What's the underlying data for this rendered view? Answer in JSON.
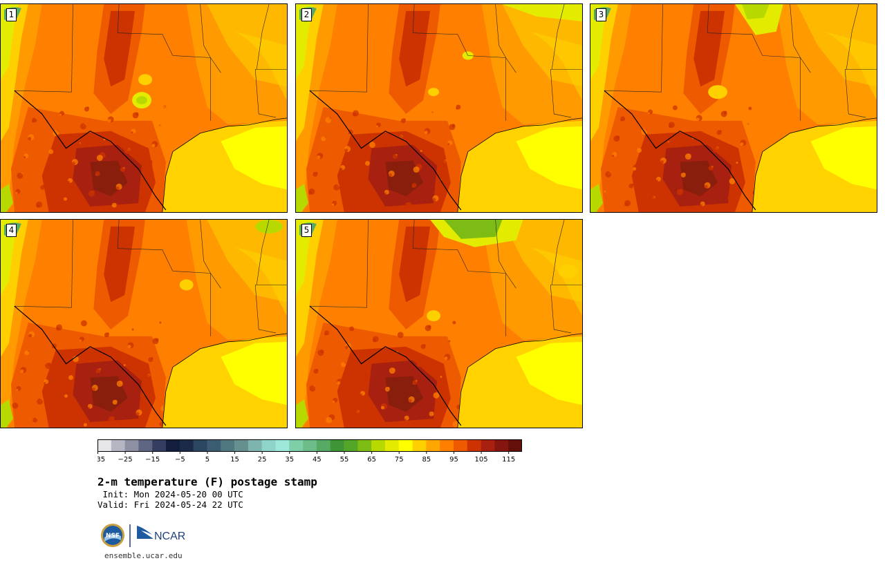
{
  "title": "2-m temperature (F) postage stamp",
  "init_line": " Init: Mon 2024-05-20 00 UTC",
  "valid_line": "Valid: Fri 2024-05-24 22 UTC",
  "site": "ensemble.ucar.edu",
  "logos": {
    "nsf_text": "NSF",
    "ncar_text": "NCAR"
  },
  "panels": [
    {
      "label": "1",
      "variant": 1
    },
    {
      "label": "2",
      "variant": 2
    },
    {
      "label": "3",
      "variant": 3
    },
    {
      "label": "4",
      "variant": 4
    },
    {
      "label": "5",
      "variant": 5
    }
  ],
  "colorbar": {
    "min": -35,
    "max": 120,
    "step": 5,
    "tick_labels": [
      "−35",
      "−25",
      "−15",
      "−5",
      "5",
      "15",
      "25",
      "35",
      "45",
      "55",
      "65",
      "75",
      "85",
      "95",
      "105",
      "115"
    ],
    "colors": [
      "#e6e6e9",
      "#b5b5c3",
      "#8d90a3",
      "#5f6683",
      "#353e61",
      "#131d3c",
      "#1c2a4a",
      "#2b4660",
      "#3c5d71",
      "#4f7880",
      "#65908f",
      "#7db4ae",
      "#8fd4c8",
      "#9de8d8",
      "#7ccfa6",
      "#6cbd8a",
      "#56aa64",
      "#3f9536",
      "#54a628",
      "#7dbc14",
      "#b8d900",
      "#e3ec00",
      "#ffff00",
      "#ffd000",
      "#ffa600",
      "#ff8000",
      "#ee5a00",
      "#cc3300",
      "#a82010",
      "#84160f",
      "#621008"
    ]
  }
}
